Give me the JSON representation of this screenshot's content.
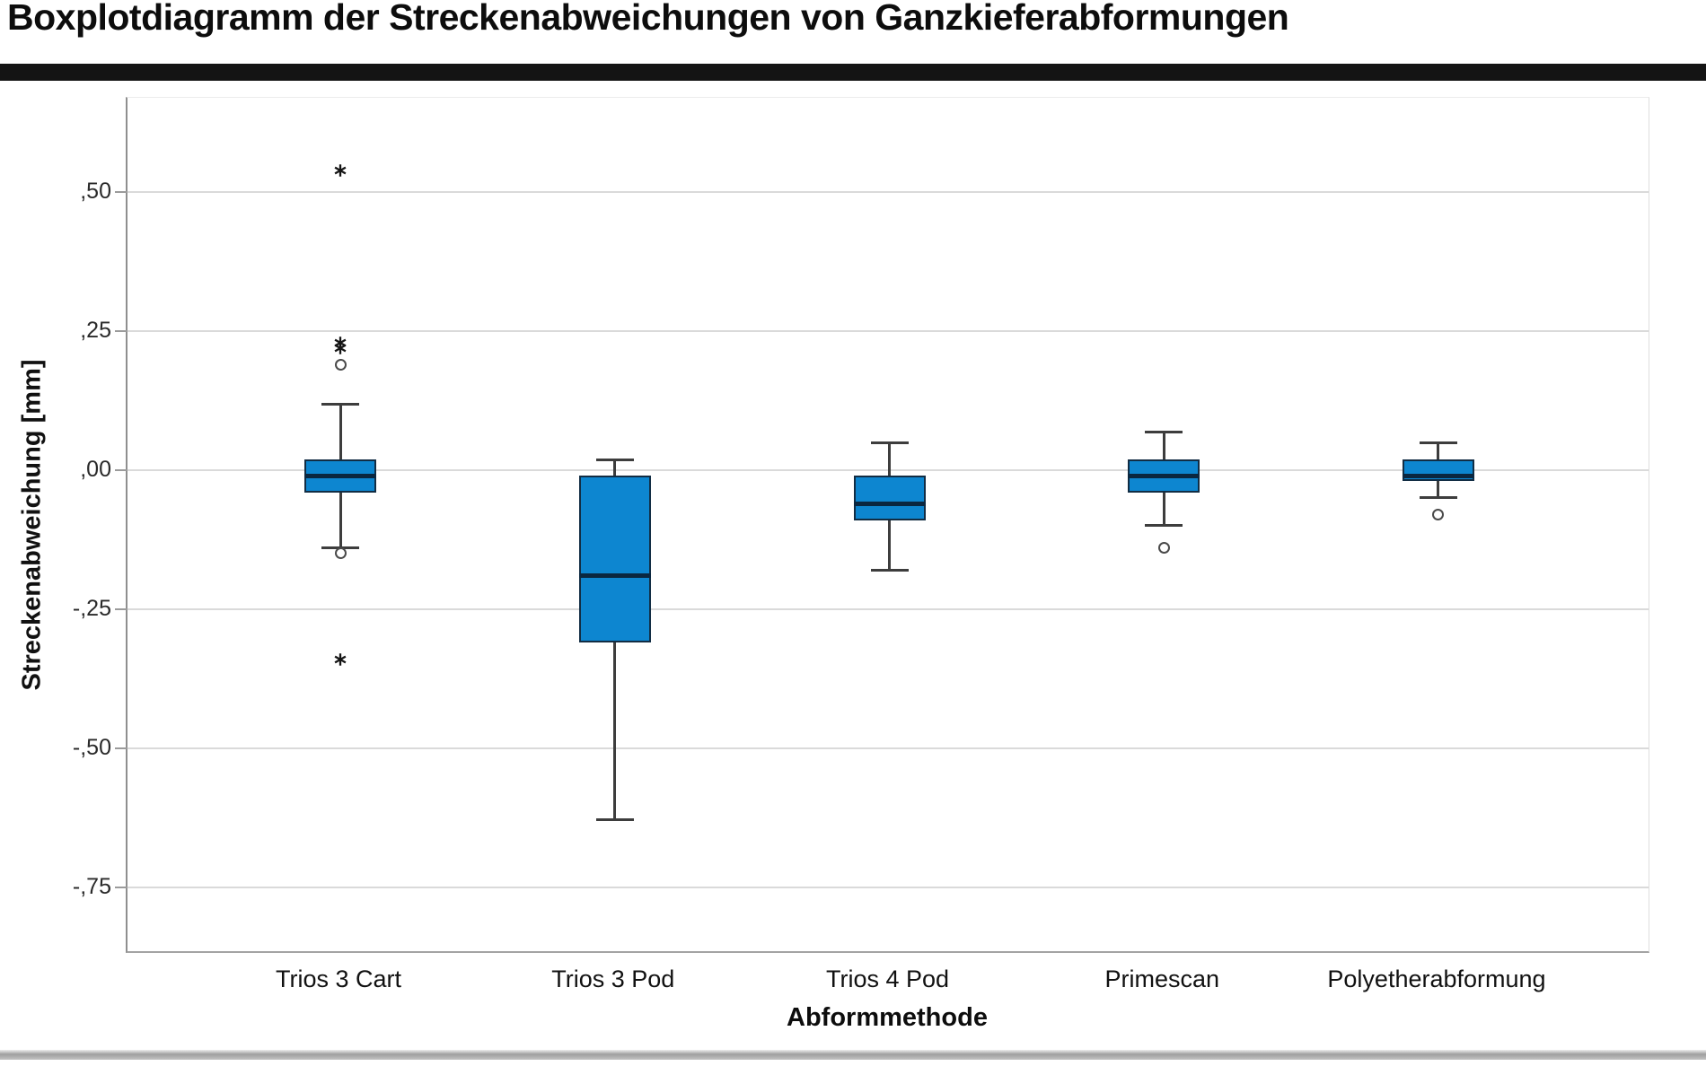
{
  "title": "Boxplotdiagramm der Streckenabweichungen von Ganzkieferabformungen",
  "colors": {
    "box_fill": "#0d86d0",
    "box_border": "#122d44",
    "median": "#0a2740",
    "whisker": "#3d3d3d",
    "grid": "#dadada",
    "tick": "#9b9b9b",
    "outlier_stroke": "#4a4a4a",
    "extreme_star": "#151515",
    "title_rule": "#141414"
  },
  "markers": {
    "outlier": "open-circle",
    "extreme": "asterisk-star"
  },
  "chart_data": {
    "type": "boxplot",
    "title": "Boxplotdiagramm der Streckenabweichungen von Ganzkieferabformungen",
    "xlabel": "Abformmethode",
    "ylabel": "Streckenabweichung [mm]",
    "ylim": [
      -0.87,
      0.67
    ],
    "grid": true,
    "legend": false,
    "ytick_values": [
      0.5,
      0.25,
      0.0,
      -0.25,
      -0.5,
      -0.75
    ],
    "ytick_labels": [
      ",50",
      ",25",
      ",00",
      "-,25",
      "-,50",
      "-,75"
    ],
    "categories": [
      "Trios 3 Cart",
      "Trios 3 Pod",
      "Trios 4 Pod",
      "Primescan",
      "Polyetherabformung"
    ],
    "series": [
      {
        "name": "Trios 3 Cart",
        "whisker_low": -0.14,
        "q1": -0.04,
        "median": -0.01,
        "q3": 0.02,
        "whisker_high": 0.12,
        "outliers": [
          0.19,
          -0.15
        ],
        "extremes": [
          0.54,
          0.23,
          0.22,
          -0.34
        ]
      },
      {
        "name": "Trios 3 Pod",
        "whisker_low": -0.63,
        "q1": -0.31,
        "median": -0.19,
        "q3": -0.01,
        "whisker_high": 0.02,
        "outliers": [],
        "extremes": []
      },
      {
        "name": "Trios 4 Pod",
        "whisker_low": -0.18,
        "q1": -0.09,
        "median": -0.06,
        "q3": -0.01,
        "whisker_high": 0.05,
        "outliers": [],
        "extremes": []
      },
      {
        "name": "Primescan",
        "whisker_low": -0.1,
        "q1": -0.04,
        "median": -0.01,
        "q3": 0.02,
        "whisker_high": 0.07,
        "outliers": [
          -0.14
        ],
        "extremes": []
      },
      {
        "name": "Polyetherabformung",
        "whisker_low": -0.05,
        "q1": -0.02,
        "median": -0.01,
        "q3": 0.02,
        "whisker_high": 0.05,
        "outliers": [
          -0.08
        ],
        "extremes": []
      }
    ]
  }
}
